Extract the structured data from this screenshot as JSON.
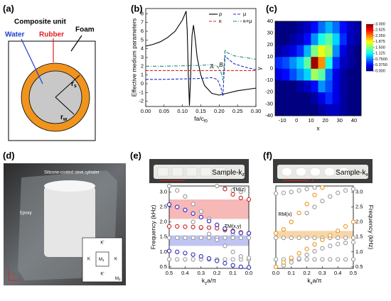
{
  "panel_a": {
    "label": "(a)",
    "title": "Composite unit",
    "water": "Water",
    "rubber": "Rubber",
    "foam": "Foam",
    "rs": {
      "main": "r",
      "sub": "s"
    },
    "rw": {
      "main": "r",
      "sub": "w"
    }
  },
  "panel_d": {
    "label": "(d)",
    "cylinder": "Silicone-coated steel cylinder",
    "epoxy": "Epoxy",
    "inset": {
      "k1": "K'",
      "k2": "K",
      "k3": "K",
      "k4": "K'",
      "m1": {
        "main": "M",
        "sub": "1"
      },
      "m2": {
        "main": "M",
        "sub": "2"
      }
    },
    "axes": {
      "z": "z",
      "x": "x",
      "y": "y"
    }
  },
  "chart_data": [
    {
      "type": "line",
      "label": "(b)",
      "y_label": "Effective medium parameters",
      "x_label": {
        "main": "fa/c",
        "sub": "f0"
      },
      "xlim": [
        0,
        0.3
      ],
      "xticks": [
        {
          "value": 0,
          "label": "0.00"
        },
        0.05,
        {
          "value": 0.1,
          "label": "0.10"
        },
        0.15,
        {
          "value": 0.2,
          "label": "0.20"
        },
        0.25,
        {
          "value": 0.3,
          "label": "0.30"
        }
      ],
      "ylim": [
        -2.6,
        8.6
      ],
      "yticks": [
        -2,
        -1,
        0,
        1,
        2,
        3,
        4,
        5,
        6,
        7,
        8
      ],
      "series": [
        {
          "name": "ρ",
          "color": "#000000",
          "style": "solid",
          "x": [
            0,
            0.02,
            0.04,
            0.06,
            0.08,
            0.1,
            0.105,
            0.11,
            0.113,
            0.116,
            0.119,
            0.122,
            0.126,
            0.13,
            0.135,
            0.14,
            0.15,
            0.16,
            0.18,
            0.2,
            0.22,
            0.25,
            0.3
          ],
          "values": [
            4.3,
            4.5,
            4.8,
            5.3,
            6.0,
            7.3,
            7.8,
            8.3,
            6.0,
            1.0,
            -2.5,
            0.5,
            5.5,
            6.7,
            5.0,
            3.0,
            1.0,
            -0.2,
            -1.1,
            -1.3,
            -1.1,
            -0.8,
            -0.5
          ]
        },
        {
          "name": "μ",
          "color": "#1f2fbf",
          "style": "dashed",
          "x": [
            0,
            0.05,
            0.1,
            0.15,
            0.18,
            0.195,
            0.205,
            0.21,
            0.213,
            0.216,
            0.22,
            0.24,
            0.27,
            0.3
          ],
          "values": [
            0.5,
            0.5,
            0.55,
            0.6,
            0.7,
            0.5,
            -0.5,
            -1.4,
            1.0,
            3.2,
            3.0,
            2.3,
            1.9,
            1.6
          ]
        },
        {
          "name": "κ",
          "color": "#e02020",
          "style": "dashed",
          "x": [
            0,
            0.1,
            0.2,
            0.3
          ],
          "values": [
            1.5,
            1.5,
            1.5,
            1.5
          ]
        },
        {
          "name": "κ+μ",
          "color": "#1a8a7a",
          "style": "dashdot",
          "x": [
            0,
            0.05,
            0.1,
            0.15,
            0.18,
            0.195,
            0.205,
            0.21,
            0.213,
            0.216,
            0.22,
            0.24,
            0.27,
            0.3
          ],
          "values": [
            2.0,
            2.0,
            2.05,
            2.1,
            2.2,
            2.0,
            1.3,
            0.4,
            2.0,
            3.9,
            3.6,
            3.2,
            3.0,
            2.8
          ]
        }
      ],
      "annotations": [
        {
          "text": "A",
          "x": 0.18,
          "y": 1.9
        },
        {
          "text": "B",
          "x": 0.205,
          "y": 2.1
        }
      ],
      "legend": "top-right"
    },
    {
      "type": "heatmap",
      "label": "(c)",
      "x_label": "x",
      "y_label": "y",
      "xlim": [
        -15,
        45
      ],
      "xticks": [
        -10,
        0,
        10,
        20,
        30,
        40
      ],
      "ylim": [
        -40,
        40
      ],
      "yticks": [
        -40,
        -30,
        -20,
        -10,
        0,
        10,
        20,
        30,
        40
      ],
      "x": [
        -12.5,
        -7.5,
        -2.5,
        2.5,
        7.5,
        12.5,
        17.5,
        22.5,
        27.5,
        32.5,
        37.5,
        42.5
      ],
      "y": [
        -35,
        -25,
        -15,
        -5,
        5,
        15,
        25,
        35
      ],
      "z": [
        [
          0,
          0,
          0,
          0,
          0,
          0,
          0.1,
          0.2,
          0.2,
          0.1,
          0,
          0
        ],
        [
          0,
          0,
          0,
          0,
          0,
          0.1,
          0.3,
          0.5,
          0.3,
          0.1,
          0,
          0
        ],
        [
          0,
          0,
          0,
          0.1,
          0.2,
          0.4,
          0.8,
          0.6,
          0.3,
          0.1,
          0,
          0
        ],
        [
          0.3,
          0.4,
          0.6,
          0.8,
          1.0,
          1.6,
          1.4,
          0.7,
          0.3,
          0.1,
          0,
          0
        ],
        [
          0.5,
          0.6,
          0.8,
          1.0,
          1.4,
          2.9,
          2.2,
          1.2,
          0.5,
          0.2,
          0.1,
          0
        ],
        [
          0.1,
          0.2,
          0.3,
          0.5,
          0.9,
          1.5,
          1.8,
          1.6,
          0.8,
          0.3,
          0.1,
          0
        ],
        [
          0,
          0,
          0.1,
          0.2,
          0.4,
          0.8,
          1.2,
          1.4,
          1.0,
          0.5,
          0.2,
          0.1
        ],
        [
          0,
          0,
          0,
          0.1,
          0.2,
          0.4,
          0.7,
          0.9,
          0.7,
          0.4,
          0.2,
          0.1
        ]
      ],
      "clim": [
        0,
        3
      ],
      "colorbar_ticks": [
        {
          "value": 0,
          "label": "0.000"
        },
        {
          "value": 0.375,
          "label": "0.3750"
        },
        {
          "value": 0.75,
          "label": "0.7500"
        },
        1.125,
        {
          "value": 1.5,
          "label": "1.500"
        },
        1.875,
        {
          "value": 2.25,
          "label": "2.250"
        },
        2.625,
        {
          "value": 3,
          "label": "3.000"
        }
      ]
    },
    {
      "type": "scatter",
      "label": "(e)",
      "photo_label": {
        "main": "Sample-k",
        "sub": "z"
      },
      "y_label": "Frequency (kHz)",
      "y_axis_side": "left",
      "x_label": {
        "main": "k",
        "sub": "z",
        "rest": "a/π"
      },
      "xlim": [
        0.5,
        0
      ],
      "xticks": [
        0.5,
        0.4,
        0.3,
        0.2,
        0.1,
        {
          "value": 0,
          "label": "0.0"
        }
      ],
      "ylim": [
        0.45,
        3.2
      ],
      "yticks": [
        0.5,
        {
          "value": 1,
          "label": "1.0"
        },
        1.5,
        {
          "value": 2,
          "label": "2.0"
        },
        2.5,
        {
          "value": 3,
          "label": "3.0"
        }
      ],
      "bands": [
        {
          "range": [
            2.1,
            2.75
          ],
          "color": "#f4a0a0"
        },
        {
          "range": [
            1.2,
            1.55
          ],
          "color": "#aab0ee"
        }
      ],
      "x": [
        0,
        0.05,
        0.1,
        0.15,
        0.2,
        0.25,
        0.3,
        0.35,
        0.4,
        0.45,
        0.5
      ],
      "series": [
        {
          "color": "#999999",
          "values": [
            0.75,
            0.75,
            0.75,
            0.75,
            0.75,
            0.75,
            0.75,
            0.75,
            0.75,
            0.75,
            0.75
          ]
        },
        {
          "color": "#999999",
          "values": [
            1.47,
            1.47,
            1.47,
            1.47,
            1.47,
            1.47,
            1.47,
            1.47,
            1.47,
            1.47,
            1.47
          ]
        },
        {
          "color": "#999999",
          "values": [
            null,
            null,
            1.6,
            1.72,
            1.9,
            2.1,
            2.35,
            2.6,
            2.85,
            3.05,
            3.2
          ]
        },
        {
          "color": "#999999",
          "values": [
            0.8,
            0.85,
            1.0,
            1.2,
            1.4,
            1.6,
            1.8,
            2.0,
            null,
            null,
            null
          ]
        },
        {
          "color": "#999999",
          "values": [
            null,
            3.0,
            3.05,
            3.12,
            3.2,
            null,
            null,
            null,
            null,
            null,
            null
          ]
        },
        {
          "color": "#d42020",
          "values": [
            2.75,
            2.8,
            2.92,
            3.1,
            null,
            null,
            null,
            null,
            null,
            null,
            null
          ]
        },
        {
          "color": "#d42020",
          "values": [
            1.62,
            1.65,
            1.7,
            1.75,
            1.79,
            1.81,
            1.82,
            1.83,
            1.84,
            1.85,
            1.85
          ]
        },
        {
          "color": "#2a2ac8",
          "values": [
            1.62,
            1.63,
            1.68,
            1.78,
            1.9,
            2.03,
            2.16,
            2.28,
            2.4,
            2.5,
            2.58
          ]
        },
        {
          "color": "#2a2ac8",
          "values": [
            0.48,
            0.5,
            0.55,
            0.62,
            0.7,
            0.78,
            0.85,
            0.91,
            0.96,
            1.0,
            1.03
          ]
        }
      ],
      "annotations": [
        {
          "text": "TM(z)",
          "x": 0.06,
          "y": 3.08
        },
        {
          "text": "TM(x,y)",
          "x": 0.1,
          "y": 1.85
        }
      ]
    },
    {
      "type": "scatter",
      "label": "(f)",
      "photo_label": {
        "main": "Sample-k",
        "sub": "x"
      },
      "photo_arrow": "x",
      "y_label": "Frequency (kHz)",
      "y_axis_side": "right",
      "x_label": {
        "main": "k",
        "sub": "x",
        "rest": "a/π"
      },
      "xlim": [
        0,
        0.5
      ],
      "xticks": [
        {
          "value": 0,
          "label": "0.0"
        },
        0.1,
        0.2,
        0.3,
        0.4,
        0.5
      ],
      "ylim": [
        0.45,
        3.2
      ],
      "yticks": [
        0.5,
        {
          "value": 1,
          "label": "1.0"
        },
        1.5,
        {
          "value": 2,
          "label": "2.0"
        },
        2.5,
        {
          "value": 3,
          "label": "3.0"
        }
      ],
      "bands": [
        {
          "range": [
            1.45,
            1.7
          ],
          "color": "#f5c88a"
        }
      ],
      "x": [
        0,
        0.05,
        0.1,
        0.15,
        0.2,
        0.25,
        0.3,
        0.35,
        0.4,
        0.45,
        0.5
      ],
      "series": [
        {
          "color": "#999999",
          "values": [
            0.75,
            0.75,
            0.75,
            0.75,
            0.75,
            0.75,
            0.75,
            0.75,
            0.75,
            0.75,
            0.75
          ]
        },
        {
          "color": "#999999",
          "values": [
            1.47,
            1.47,
            1.47,
            1.47,
            1.47,
            1.47,
            1.47,
            1.47,
            1.47,
            1.47,
            1.47
          ]
        },
        {
          "color": "#999999",
          "values": [
            0.5,
            0.55,
            0.65,
            0.78,
            0.9,
            1.02,
            1.12,
            1.2,
            1.26,
            1.3,
            1.32
          ]
        },
        {
          "color": "#999999",
          "values": [
            null,
            null,
            null,
            null,
            2.3,
            2.5,
            2.7,
            2.85,
            2.97,
            3.05,
            3.1
          ]
        },
        {
          "color": "#999999",
          "values": [
            2.95,
            2.97,
            3.0,
            3.05,
            3.1,
            3.15,
            null,
            null,
            null,
            null,
            null
          ]
        },
        {
          "color": "#e8961e",
          "values": [
            0.5,
            0.65,
            0.8,
            0.95,
            1.1,
            1.25,
            1.4,
            1.55,
            1.7,
            1.85,
            2.0
          ]
        },
        {
          "color": "#e8961e",
          "values": [
            1.62,
            1.75,
            2.0,
            2.3,
            2.6,
            2.9,
            3.15,
            null,
            null,
            null,
            null
          ]
        }
      ],
      "annotations": [
        {
          "text": "RM(x)",
          "x": 0.06,
          "y": 2.25
        }
      ]
    }
  ]
}
